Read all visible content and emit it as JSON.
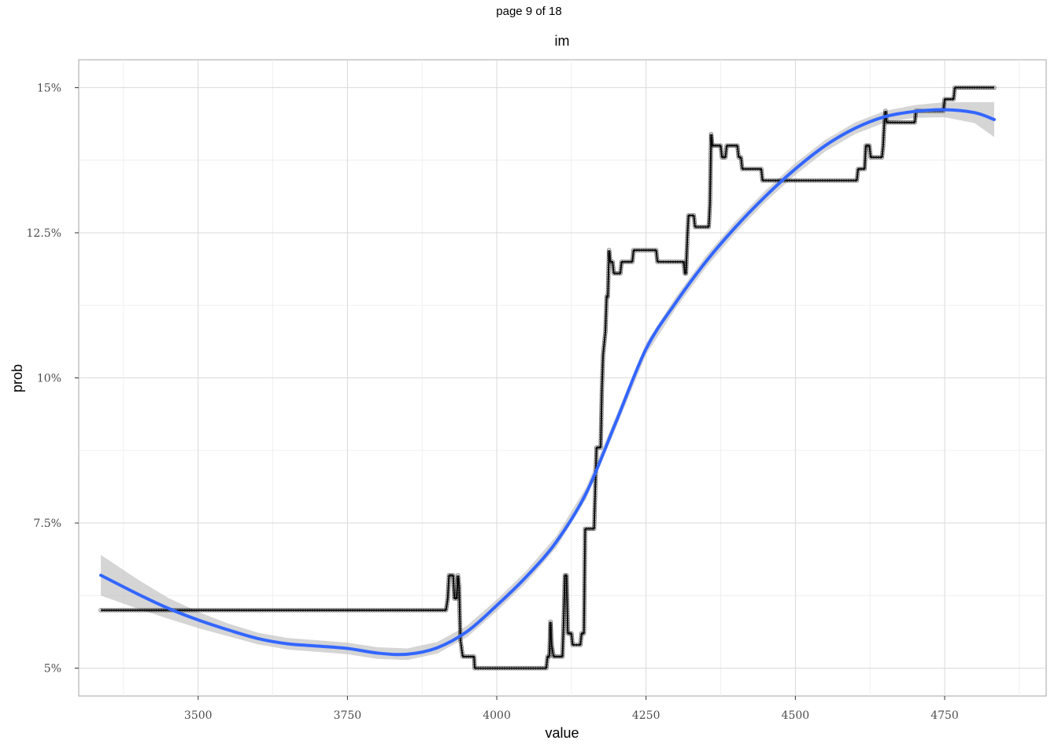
{
  "page_label": "page 9 of 18",
  "chart_data": {
    "type": "line",
    "title": "im",
    "xlabel": "value",
    "ylabel": "prob",
    "xlim": [
      3300,
      4920
    ],
    "ylim": [
      0.0452,
      0.1548
    ],
    "x_ticks": [
      3500,
      3750,
      4000,
      4250,
      4500,
      4750
    ],
    "x_tick_labels": [
      "3500",
      "3750",
      "4000",
      "4250",
      "4500",
      "4750"
    ],
    "y_ticks": [
      0.05,
      0.075,
      0.1,
      0.125,
      0.15
    ],
    "y_tick_labels": [
      "5%",
      "7.5%",
      "10%",
      "12.5%",
      "15%"
    ],
    "grid": true,
    "legend": "none",
    "colors": {
      "step": "#000000",
      "smooth": "#3366ff",
      "band": "#bebebe",
      "grid": "#d9d9d9",
      "panel_border": "#b3b3b3"
    },
    "series": [
      {
        "kind": "step",
        "points": [
          [
            3337,
            0.06
          ],
          [
            3915,
            0.06
          ],
          [
            3918,
            0.062
          ],
          [
            3920,
            0.066
          ],
          [
            3927,
            0.066
          ],
          [
            3929,
            0.062
          ],
          [
            3933,
            0.062
          ],
          [
            3935,
            0.066
          ],
          [
            3937,
            0.064
          ],
          [
            3939,
            0.055
          ],
          [
            3943,
            0.052
          ],
          [
            3962,
            0.052
          ],
          [
            3963,
            0.05
          ],
          [
            4083,
            0.05
          ],
          [
            4085,
            0.052
          ],
          [
            4088,
            0.052
          ],
          [
            4090,
            0.058
          ],
          [
            4092,
            0.054
          ],
          [
            4095,
            0.052
          ],
          [
            4110,
            0.052
          ],
          [
            4112,
            0.058
          ],
          [
            4114,
            0.066
          ],
          [
            4117,
            0.066
          ],
          [
            4119,
            0.056
          ],
          [
            4125,
            0.056
          ],
          [
            4127,
            0.054
          ],
          [
            4140,
            0.054
          ],
          [
            4142,
            0.056
          ],
          [
            4146,
            0.056
          ],
          [
            4148,
            0.074
          ],
          [
            4163,
            0.074
          ],
          [
            4165,
            0.081
          ],
          [
            4167,
            0.088
          ],
          [
            4174,
            0.088
          ],
          [
            4176,
            0.098
          ],
          [
            4178,
            0.104
          ],
          [
            4180,
            0.106
          ],
          [
            4182,
            0.108
          ],
          [
            4184,
            0.114
          ],
          [
            4186,
            0.114
          ],
          [
            4188,
            0.122
          ],
          [
            4190,
            0.12
          ],
          [
            4194,
            0.12
          ],
          [
            4196,
            0.118
          ],
          [
            4207,
            0.118
          ],
          [
            4209,
            0.12
          ],
          [
            4227,
            0.12
          ],
          [
            4229,
            0.122
          ],
          [
            4267,
            0.122
          ],
          [
            4269,
            0.12
          ],
          [
            4313,
            0.12
          ],
          [
            4315,
            0.118
          ],
          [
            4317,
            0.118
          ],
          [
            4319,
            0.124
          ],
          [
            4321,
            0.128
          ],
          [
            4330,
            0.128
          ],
          [
            4332,
            0.126
          ],
          [
            4355,
            0.126
          ],
          [
            4357,
            0.13
          ],
          [
            4359,
            0.142
          ],
          [
            4361,
            0.14
          ],
          [
            4375,
            0.14
          ],
          [
            4377,
            0.138
          ],
          [
            4383,
            0.138
          ],
          [
            4385,
            0.14
          ],
          [
            4403,
            0.14
          ],
          [
            4405,
            0.138
          ],
          [
            4409,
            0.138
          ],
          [
            4411,
            0.136
          ],
          [
            4443,
            0.136
          ],
          [
            4445,
            0.134
          ],
          [
            4603,
            0.134
          ],
          [
            4605,
            0.136
          ],
          [
            4616,
            0.136
          ],
          [
            4618,
            0.14
          ],
          [
            4624,
            0.14
          ],
          [
            4626,
            0.138
          ],
          [
            4645,
            0.138
          ],
          [
            4647,
            0.14
          ],
          [
            4649,
            0.144
          ],
          [
            4651,
            0.146
          ],
          [
            4653,
            0.144
          ],
          [
            4700,
            0.144
          ],
          [
            4702,
            0.146
          ],
          [
            4748,
            0.146
          ],
          [
            4750,
            0.148
          ],
          [
            4765,
            0.148
          ],
          [
            4767,
            0.15
          ],
          [
            4833,
            0.15
          ]
        ]
      },
      {
        "kind": "smooth",
        "points": [
          [
            3337,
            0.066
          ],
          [
            3400,
            0.0627
          ],
          [
            3450,
            0.0603
          ],
          [
            3500,
            0.0583
          ],
          [
            3550,
            0.0566
          ],
          [
            3600,
            0.0551
          ],
          [
            3650,
            0.0542
          ],
          [
            3700,
            0.0538
          ],
          [
            3750,
            0.0534
          ],
          [
            3800,
            0.0526
          ],
          [
            3850,
            0.0524
          ],
          [
            3900,
            0.0535
          ],
          [
            3950,
            0.0563
          ],
          [
            4000,
            0.0608
          ],
          [
            4050,
            0.0658
          ],
          [
            4100,
            0.0718
          ],
          [
            4150,
            0.0802
          ],
          [
            4200,
            0.0925
          ],
          [
            4250,
            0.105
          ],
          [
            4300,
            0.113
          ],
          [
            4350,
            0.12
          ],
          [
            4400,
            0.126
          ],
          [
            4450,
            0.1313
          ],
          [
            4500,
            0.136
          ],
          [
            4550,
            0.14
          ],
          [
            4600,
            0.143
          ],
          [
            4650,
            0.145
          ],
          [
            4700,
            0.1459
          ],
          [
            4750,
            0.1462
          ],
          [
            4800,
            0.1457
          ],
          [
            4833,
            0.1445
          ]
        ],
        "band_halfwidth": [
          0.0035,
          0.0025,
          0.0018,
          0.0014,
          0.0011,
          0.001,
          0.001,
          0.001,
          0.001,
          0.001,
          0.001,
          0.001,
          0.001,
          0.001,
          0.001,
          0.001,
          0.001,
          0.001,
          0.001,
          0.001,
          0.001,
          0.001,
          0.001,
          0.001,
          0.001,
          0.001,
          0.001,
          0.0011,
          0.0013,
          0.0018,
          0.003
        ]
      }
    ]
  }
}
